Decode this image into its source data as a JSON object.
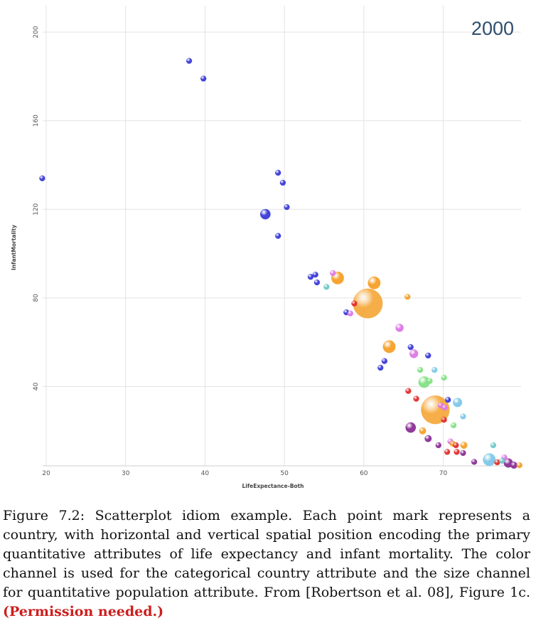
{
  "chart_data": {
    "type": "scatter",
    "title": "2000",
    "xlabel": "LifeExpectance-Both",
    "ylabel": "InfantMortality",
    "xlim": [
      19.5,
      80
    ],
    "ylim": [
      2,
      208
    ],
    "xticks": [
      20,
      30,
      40,
      50,
      60,
      70
    ],
    "yticks": [
      40,
      80,
      120,
      160,
      200
    ],
    "grid": true,
    "encoding": {
      "color": "country",
      "size": "population"
    },
    "colors": {
      "blue": "#3a3ad8",
      "orange": "#f5a028",
      "violet": "#dc78e6",
      "red": "#e02e2e",
      "green": "#84e184",
      "lightblue": "#7ec8e8",
      "purple": "#8a2e96",
      "teal": "#6fc8c8"
    },
    "points": [
      {
        "x": 19.5,
        "y": 134,
        "size": 1.0,
        "color": "blue"
      },
      {
        "x": 38,
        "y": 187,
        "size": 1.0,
        "color": "blue"
      },
      {
        "x": 39.8,
        "y": 179,
        "size": 1.0,
        "color": "blue"
      },
      {
        "x": 49.2,
        "y": 136.5,
        "size": 1.0,
        "color": "blue"
      },
      {
        "x": 49.8,
        "y": 132,
        "size": 1.0,
        "color": "blue"
      },
      {
        "x": 50.3,
        "y": 121,
        "size": 1.0,
        "color": "blue"
      },
      {
        "x": 47.6,
        "y": 117.8,
        "size": 1.8,
        "color": "blue"
      },
      {
        "x": 49.2,
        "y": 108,
        "size": 1.0,
        "color": "blue"
      },
      {
        "x": 53.3,
        "y": 89.5,
        "size": 1.0,
        "color": "blue"
      },
      {
        "x": 53.9,
        "y": 90.5,
        "size": 1.0,
        "color": "blue"
      },
      {
        "x": 54.1,
        "y": 87,
        "size": 1.0,
        "color": "blue"
      },
      {
        "x": 56.1,
        "y": 91.2,
        "size": 1.0,
        "color": "violet"
      },
      {
        "x": 55.3,
        "y": 85,
        "size": 1.0,
        "color": "teal"
      },
      {
        "x": 56.7,
        "y": 89,
        "size": 2.2,
        "color": "orange"
      },
      {
        "x": 61.3,
        "y": 86.8,
        "size": 2.2,
        "color": "orange"
      },
      {
        "x": 65.5,
        "y": 80.5,
        "size": 1.0,
        "color": "orange"
      },
      {
        "x": 60.5,
        "y": 77.5,
        "size": 5.2,
        "color": "orange"
      },
      {
        "x": 58.8,
        "y": 77.5,
        "size": 1.0,
        "color": "red"
      },
      {
        "x": 57.8,
        "y": 73.5,
        "size": 1.0,
        "color": "blue"
      },
      {
        "x": 58.3,
        "y": 73,
        "size": 1.0,
        "color": "violet"
      },
      {
        "x": 64.5,
        "y": 66.5,
        "size": 1.4,
        "color": "violet"
      },
      {
        "x": 63.2,
        "y": 58,
        "size": 2.2,
        "color": "orange"
      },
      {
        "x": 65.9,
        "y": 57.8,
        "size": 1.0,
        "color": "blue"
      },
      {
        "x": 66.3,
        "y": 54.8,
        "size": 1.5,
        "color": "violet"
      },
      {
        "x": 68.1,
        "y": 54,
        "size": 1.0,
        "color": "blue"
      },
      {
        "x": 62.6,
        "y": 51.5,
        "size": 1.0,
        "color": "blue"
      },
      {
        "x": 62.1,
        "y": 48.5,
        "size": 1.0,
        "color": "blue"
      },
      {
        "x": 67.1,
        "y": 47.5,
        "size": 1.0,
        "color": "green"
      },
      {
        "x": 68.9,
        "y": 47.5,
        "size": 1.0,
        "color": "lightblue"
      },
      {
        "x": 70.1,
        "y": 44,
        "size": 1.0,
        "color": "green"
      },
      {
        "x": 67.6,
        "y": 42,
        "size": 2.0,
        "color": "green"
      },
      {
        "x": 68.3,
        "y": 42.5,
        "size": 1.0,
        "color": "green"
      },
      {
        "x": 65.6,
        "y": 38,
        "size": 1.0,
        "color": "red"
      },
      {
        "x": 66.6,
        "y": 34.5,
        "size": 1.0,
        "color": "red"
      },
      {
        "x": 70.6,
        "y": 34,
        "size": 1.0,
        "color": "blue"
      },
      {
        "x": 71.8,
        "y": 32.8,
        "size": 1.6,
        "color": "lightblue"
      },
      {
        "x": 69.0,
        "y": 29.5,
        "size": 5.0,
        "color": "orange"
      },
      {
        "x": 69.7,
        "y": 31.5,
        "size": 1.0,
        "color": "violet"
      },
      {
        "x": 70.2,
        "y": 30.5,
        "size": 1.0,
        "color": "violet"
      },
      {
        "x": 72.5,
        "y": 26.5,
        "size": 1.0,
        "color": "lightblue"
      },
      {
        "x": 70.1,
        "y": 25,
        "size": 1.0,
        "color": "red"
      },
      {
        "x": 71.3,
        "y": 22.5,
        "size": 1.0,
        "color": "green"
      },
      {
        "x": 65.9,
        "y": 21.5,
        "size": 1.8,
        "color": "purple"
      },
      {
        "x": 67.4,
        "y": 20,
        "size": 1.2,
        "color": "orange"
      },
      {
        "x": 68.1,
        "y": 16.5,
        "size": 1.2,
        "color": "purple"
      },
      {
        "x": 69.4,
        "y": 13.5,
        "size": 1.0,
        "color": "purple"
      },
      {
        "x": 70.9,
        "y": 15.2,
        "size": 1.0,
        "color": "violet"
      },
      {
        "x": 71.2,
        "y": 14.2,
        "size": 1.0,
        "color": "orange"
      },
      {
        "x": 71.6,
        "y": 13.5,
        "size": 1.0,
        "color": "red"
      },
      {
        "x": 72.6,
        "y": 13.5,
        "size": 1.2,
        "color": "orange"
      },
      {
        "x": 70.5,
        "y": 10.5,
        "size": 1.0,
        "color": "red"
      },
      {
        "x": 71.7,
        "y": 10.5,
        "size": 1.0,
        "color": "red"
      },
      {
        "x": 72.5,
        "y": 10,
        "size": 1.0,
        "color": "purple"
      },
      {
        "x": 73.9,
        "y": 6,
        "size": 1.0,
        "color": "purple"
      },
      {
        "x": 76.3,
        "y": 13.5,
        "size": 1.0,
        "color": "teal"
      },
      {
        "x": 75.8,
        "y": 7,
        "size": 2.2,
        "color": "lightblue"
      },
      {
        "x": 76.8,
        "y": 5.8,
        "size": 1.0,
        "color": "red"
      },
      {
        "x": 77.7,
        "y": 8,
        "size": 1.0,
        "color": "violet"
      },
      {
        "x": 77.4,
        "y": 6.5,
        "size": 1.0,
        "color": "teal"
      },
      {
        "x": 78.2,
        "y": 5.5,
        "size": 1.6,
        "color": "purple"
      },
      {
        "x": 78.9,
        "y": 4.5,
        "size": 1.2,
        "color": "purple"
      },
      {
        "x": 79.6,
        "y": 4.5,
        "size": 1.0,
        "color": "orange"
      }
    ]
  },
  "caption": {
    "text": "Figure 7.2: Scatterplot idiom example. Each point mark represents a country, with horizontal and vertical spatial position encoding the primary quantitative attributes of life expectancy and infant mortality. The color channel is used for the categorical country attribute and the size channel for quantitative population attribute. From [Robertson et al. 08], Figure 1c.",
    "permission": "(Permission needed.)"
  }
}
